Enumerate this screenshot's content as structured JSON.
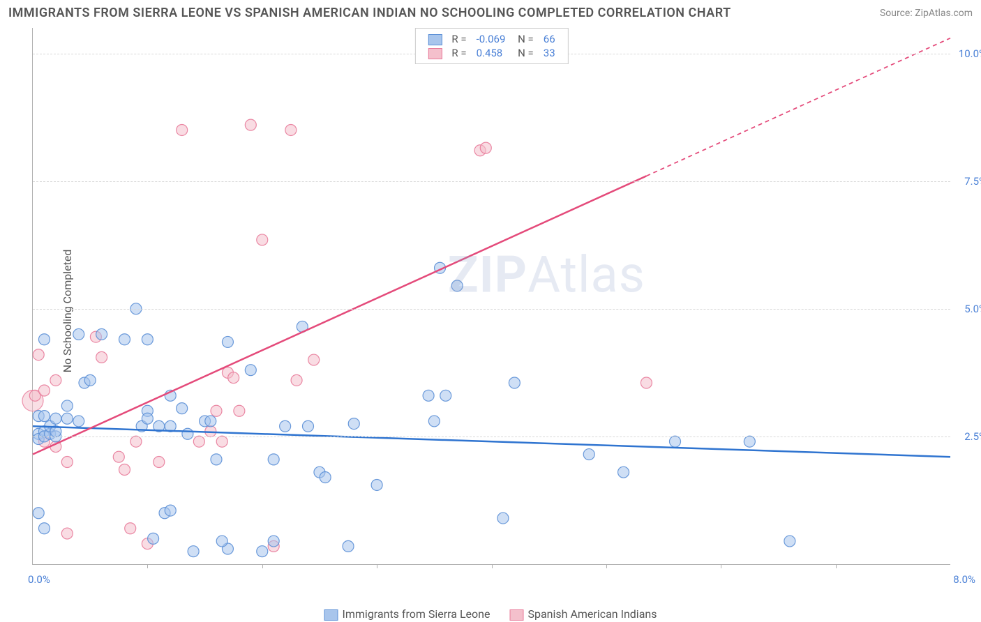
{
  "header": {
    "title": "IMMIGRANTS FROM SIERRA LEONE VS SPANISH AMERICAN INDIAN NO SCHOOLING COMPLETED CORRELATION CHART",
    "source": "Source: ZipAtlas.com"
  },
  "watermark": {
    "part1": "ZIP",
    "part2": "Atlas"
  },
  "chart": {
    "type": "scatter",
    "y_label": "No Schooling Completed",
    "x_min": 0.0,
    "x_max": 8.0,
    "y_min": 0.0,
    "y_max": 10.5,
    "y_ticks": [
      2.5,
      5.0,
      7.5,
      10.0
    ],
    "y_tick_labels": [
      "2.5%",
      "5.0%",
      "7.5%",
      "10.0%"
    ],
    "x_tick_marks": [
      1.0,
      2.0,
      3.0,
      4.0,
      5.0,
      6.0,
      7.0
    ],
    "x_min_label": "0.0%",
    "x_max_label": "8.0%",
    "grid_color": "#d8d8d8",
    "axis_color": "#b0b0b0",
    "background_color": "#ffffff",
    "marker_radius": 8,
    "marker_opacity": 0.55,
    "marker_stroke_opacity": 0.9,
    "line_width": 2.5
  },
  "series_a": {
    "name": "Immigrants from Sierra Leone",
    "color_fill": "#a8c5ec",
    "color_stroke": "#5b8fd6",
    "line_color": "#2f74d0",
    "r_value": "-0.069",
    "n_value": "66",
    "trend": {
      "x1": 0.0,
      "y1": 2.7,
      "x2": 8.0,
      "y2": 2.1
    },
    "points": [
      [
        0.05,
        2.55
      ],
      [
        0.05,
        2.45
      ],
      [
        0.1,
        2.6
      ],
      [
        0.1,
        2.5
      ],
      [
        0.15,
        2.55
      ],
      [
        0.15,
        2.7
      ],
      [
        0.2,
        2.5
      ],
      [
        0.05,
        2.9
      ],
      [
        0.1,
        2.9
      ],
      [
        0.2,
        2.85
      ],
      [
        0.3,
        2.85
      ],
      [
        0.4,
        2.8
      ],
      [
        0.05,
        1.0
      ],
      [
        0.1,
        0.7
      ],
      [
        0.2,
        2.6
      ],
      [
        0.3,
        3.1
      ],
      [
        0.45,
        3.55
      ],
      [
        0.5,
        3.6
      ],
      [
        0.1,
        4.4
      ],
      [
        0.4,
        4.5
      ],
      [
        0.6,
        4.5
      ],
      [
        0.8,
        4.4
      ],
      [
        0.9,
        5.0
      ],
      [
        0.95,
        2.7
      ],
      [
        1.0,
        3.0
      ],
      [
        1.0,
        2.85
      ],
      [
        1.1,
        2.7
      ],
      [
        1.2,
        2.7
      ],
      [
        1.35,
        2.55
      ],
      [
        1.4,
        0.25
      ],
      [
        1.0,
        4.4
      ],
      [
        1.2,
        3.3
      ],
      [
        1.3,
        3.05
      ],
      [
        1.5,
        2.8
      ],
      [
        1.55,
        2.8
      ],
      [
        1.7,
        4.35
      ],
      [
        1.6,
        2.05
      ],
      [
        1.7,
        0.3
      ],
      [
        1.65,
        0.45
      ],
      [
        1.05,
        0.5
      ],
      [
        1.15,
        1.0
      ],
      [
        1.2,
        1.05
      ],
      [
        1.9,
        3.8
      ],
      [
        2.0,
        0.25
      ],
      [
        2.1,
        0.45
      ],
      [
        2.2,
        2.7
      ],
      [
        2.35,
        4.65
      ],
      [
        2.4,
        2.7
      ],
      [
        2.1,
        2.05
      ],
      [
        2.5,
        1.8
      ],
      [
        2.55,
        1.7
      ],
      [
        2.75,
        0.35
      ],
      [
        2.8,
        2.75
      ],
      [
        3.0,
        1.55
      ],
      [
        3.45,
        3.3
      ],
      [
        3.55,
        5.8
      ],
      [
        3.7,
        5.45
      ],
      [
        3.5,
        2.8
      ],
      [
        3.6,
        3.3
      ],
      [
        4.1,
        0.9
      ],
      [
        4.2,
        3.55
      ],
      [
        4.85,
        2.15
      ],
      [
        5.15,
        1.8
      ],
      [
        5.6,
        2.4
      ],
      [
        6.25,
        2.4
      ],
      [
        6.6,
        0.45
      ]
    ]
  },
  "series_b": {
    "name": "Spanish American Indians",
    "color_fill": "#f4c0cc",
    "color_stroke": "#e87b9a",
    "line_color": "#e44a7a",
    "r_value": "0.458",
    "n_value": "33",
    "trend_solid": {
      "x1": 0.0,
      "y1": 2.15,
      "x2": 5.35,
      "y2": 7.6
    },
    "trend_dash": {
      "x1": 5.35,
      "y1": 7.6,
      "x2": 8.0,
      "y2": 10.3
    },
    "points": [
      [
        0.02,
        3.3
      ],
      [
        0.1,
        3.4
      ],
      [
        0.05,
        4.1
      ],
      [
        0.2,
        3.6
      ],
      [
        0.3,
        2.0
      ],
      [
        0.1,
        2.4
      ],
      [
        0.2,
        2.3
      ],
      [
        0.3,
        0.6
      ],
      [
        0.55,
        4.45
      ],
      [
        0.6,
        4.05
      ],
      [
        0.75,
        2.1
      ],
      [
        0.8,
        1.85
      ],
      [
        0.9,
        2.4
      ],
      [
        0.85,
        0.7
      ],
      [
        1.0,
        0.4
      ],
      [
        1.1,
        2.0
      ],
      [
        1.3,
        8.5
      ],
      [
        1.45,
        2.4
      ],
      [
        1.6,
        3.0
      ],
      [
        1.65,
        2.4
      ],
      [
        1.7,
        3.75
      ],
      [
        1.75,
        3.65
      ],
      [
        1.8,
        3.0
      ],
      [
        1.9,
        8.6
      ],
      [
        1.55,
        2.6
      ],
      [
        2.0,
        6.35
      ],
      [
        2.1,
        0.35
      ],
      [
        2.25,
        8.5
      ],
      [
        2.3,
        3.6
      ],
      [
        2.45,
        4.0
      ],
      [
        3.9,
        8.1
      ],
      [
        3.95,
        8.15
      ],
      [
        5.35,
        3.55
      ]
    ]
  },
  "series_a_big": {
    "points": [
      [
        0.0,
        3.2
      ]
    ],
    "radius": 14
  }
}
